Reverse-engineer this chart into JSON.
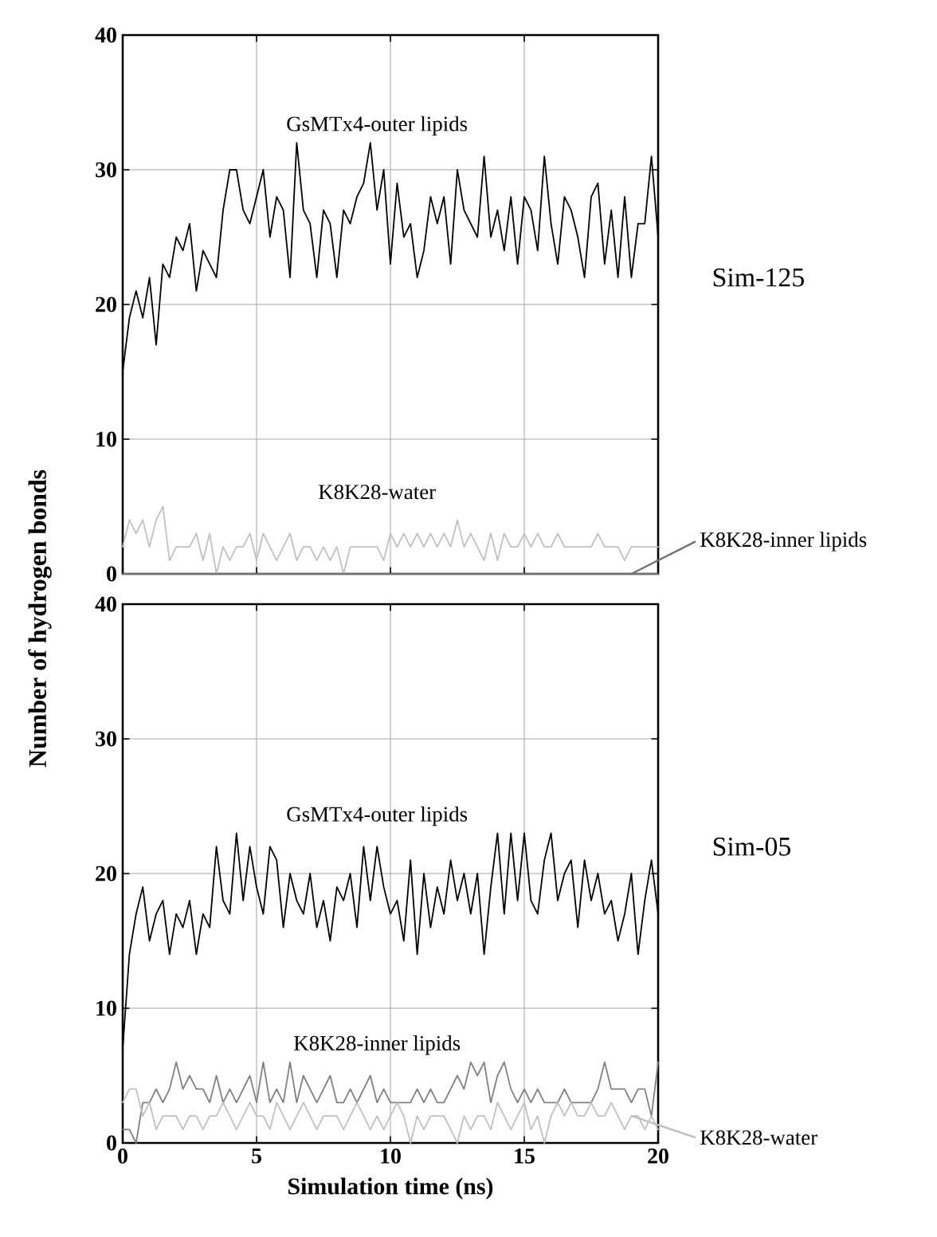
{
  "chart_data": [
    {
      "type": "line",
      "ylabel": "Number of hydrogen bonds",
      "annotations": [
        "Sim-125"
      ],
      "xlim": [
        0,
        20
      ],
      "xticks": [
        0,
        5,
        10,
        15,
        20
      ],
      "ylim": [
        0,
        40
      ],
      "yticks": [
        0,
        10,
        20,
        30,
        40
      ],
      "grid": true,
      "tick_labels": "y",
      "x": [
        0,
        0.25,
        0.5,
        0.75,
        1,
        1.25,
        1.5,
        1.75,
        2,
        2.25,
        2.5,
        2.75,
        3,
        3.25,
        3.5,
        3.75,
        4,
        4.25,
        4.5,
        4.75,
        5,
        5.25,
        5.5,
        5.75,
        6,
        6.25,
        6.5,
        6.75,
        7,
        7.25,
        7.5,
        7.75,
        8,
        8.25,
        8.5,
        8.75,
        9,
        9.25,
        9.5,
        9.75,
        10,
        10.25,
        10.5,
        10.75,
        11,
        11.25,
        11.5,
        11.75,
        12,
        12.25,
        12.5,
        12.75,
        13,
        13.25,
        13.5,
        13.75,
        14,
        14.25,
        14.5,
        14.75,
        15,
        15.25,
        15.5,
        15.75,
        16,
        16.25,
        16.5,
        16.75,
        17,
        17.25,
        17.5,
        17.75,
        18,
        18.25,
        18.5,
        18.75,
        19,
        19.25,
        19.5,
        19.75,
        20
      ],
      "series": [
        {
          "name": "GsMTx4-outer lipids",
          "color": "#000000",
          "values": [
            15,
            19,
            21,
            19,
            22,
            17,
            23,
            22,
            25,
            24,
            26,
            21,
            24,
            23,
            22,
            27,
            30,
            30,
            27,
            26,
            28,
            30,
            25,
            28,
            27,
            22,
            32,
            27,
            26,
            22,
            27,
            26,
            22,
            27,
            26,
            28,
            29,
            32,
            27,
            30,
            23,
            29,
            25,
            26,
            22,
            24,
            28,
            26,
            28,
            23,
            30,
            27,
            26,
            25,
            31,
            25,
            27,
            24,
            28,
            23,
            28,
            27,
            24,
            31,
            26,
            23,
            28,
            27,
            25,
            22,
            28,
            29,
            23,
            27,
            22,
            28,
            22,
            26,
            26,
            31,
            25
          ]
        },
        {
          "name": "K8K28-water",
          "color": "#c0c0c0",
          "values": [
            2,
            4,
            3,
            4,
            2,
            4,
            5,
            1,
            2,
            2,
            2,
            3,
            1,
            3,
            0,
            2,
            1,
            2,
            2,
            3,
            1,
            3,
            2,
            1,
            2,
            3,
            1,
            2,
            2,
            1,
            2,
            1,
            2,
            0,
            2,
            2,
            2,
            2,
            2,
            1,
            3,
            2,
            3,
            2,
            3,
            2,
            3,
            2,
            3,
            2,
            4,
            2,
            3,
            2,
            1,
            3,
            1,
            3,
            2,
            2,
            3,
            2,
            3,
            2,
            2,
            3,
            2,
            2,
            2,
            2,
            2,
            3,
            2,
            2,
            2,
            1,
            2,
            2,
            2,
            2,
            2
          ]
        },
        {
          "name": "K8K28-inner lipids",
          "color": "#707070",
          "values": [
            0,
            0,
            0,
            0,
            0,
            0,
            0,
            0,
            0,
            0,
            0,
            0,
            0,
            0,
            0,
            0,
            0,
            0,
            0,
            0,
            0,
            0,
            0,
            0,
            0,
            0,
            0,
            0,
            0,
            0,
            0,
            0,
            0,
            0,
            0,
            0,
            0,
            0,
            0,
            0,
            0,
            0,
            0,
            0,
            0,
            0,
            0,
            0,
            0,
            0,
            0,
            0,
            0,
            0,
            0,
            0,
            0,
            0,
            0,
            0,
            0,
            0,
            0,
            0,
            0,
            0,
            0,
            0,
            0,
            0,
            0,
            0,
            0,
            0,
            0,
            0,
            0,
            0,
            0,
            0,
            0
          ]
        }
      ]
    },
    {
      "type": "line",
      "xlabel": "Simulation time   (ns)",
      "annotations": [
        "Sim-05"
      ],
      "xlim": [
        0,
        20
      ],
      "xticks": [
        0,
        5,
        10,
        15,
        20
      ],
      "ylim": [
        0,
        40
      ],
      "yticks": [
        0,
        10,
        20,
        30,
        40
      ],
      "grid": true,
      "x": [
        0,
        0.25,
        0.5,
        0.75,
        1,
        1.25,
        1.5,
        1.75,
        2,
        2.25,
        2.5,
        2.75,
        3,
        3.25,
        3.5,
        3.75,
        4,
        4.25,
        4.5,
        4.75,
        5,
        5.25,
        5.5,
        5.75,
        6,
        6.25,
        6.5,
        6.75,
        7,
        7.25,
        7.5,
        7.75,
        8,
        8.25,
        8.5,
        8.75,
        9,
        9.25,
        9.5,
        9.75,
        10,
        10.25,
        10.5,
        10.75,
        11,
        11.25,
        11.5,
        11.75,
        12,
        12.25,
        12.5,
        12.75,
        13,
        13.25,
        13.5,
        13.75,
        14,
        14.25,
        14.5,
        14.75,
        15,
        15.25,
        15.5,
        15.75,
        16,
        16.25,
        16.5,
        16.75,
        17,
        17.25,
        17.5,
        17.75,
        18,
        18.25,
        18.5,
        18.75,
        19,
        19.25,
        19.5,
        19.75,
        20
      ],
      "series": [
        {
          "name": "GsMTx4-outer lipids",
          "color": "#000000",
          "values": [
            7,
            14,
            17,
            19,
            15,
            17,
            18,
            14,
            17,
            16,
            18,
            14,
            17,
            16,
            22,
            18,
            17,
            23,
            18,
            22,
            19,
            17,
            22,
            21,
            16,
            20,
            18,
            17,
            20,
            16,
            18,
            15,
            19,
            18,
            20,
            16,
            22,
            18,
            22,
            19,
            17,
            18,
            15,
            21,
            14,
            20,
            16,
            19,
            17,
            21,
            18,
            20,
            17,
            20,
            14,
            19,
            23,
            17,
            23,
            18,
            23,
            18,
            17,
            21,
            23,
            18,
            20,
            21,
            16,
            21,
            18,
            20,
            17,
            18,
            15,
            17,
            20,
            14,
            18,
            21,
            17
          ]
        },
        {
          "name": "K8K28-inner lipids",
          "color": "#808080",
          "values": [
            1,
            1,
            0,
            3,
            3,
            4,
            3,
            4,
            6,
            4,
            5,
            4,
            4,
            3,
            5,
            3,
            4,
            3,
            4,
            5,
            3,
            6,
            3,
            4,
            3,
            6,
            3,
            5,
            4,
            3,
            4,
            5,
            3,
            3,
            4,
            3,
            4,
            5,
            3,
            4,
            3,
            3,
            3,
            3,
            4,
            3,
            4,
            3,
            3,
            4,
            5,
            4,
            6,
            5,
            6,
            3,
            5,
            6,
            4,
            3,
            4,
            3,
            4,
            3,
            3,
            3,
            4,
            3,
            3,
            3,
            3,
            4,
            6,
            4,
            4,
            4,
            3,
            4,
            4,
            2,
            6
          ]
        },
        {
          "name": "K8K28-water",
          "color": "#c0c0c0",
          "values": [
            3,
            4,
            4,
            2,
            3,
            1,
            2,
            2,
            2,
            1,
            2,
            2,
            1,
            2,
            2,
            3,
            2,
            1,
            2,
            3,
            2,
            2,
            1,
            3,
            2,
            1,
            2,
            3,
            2,
            1,
            2,
            2,
            2,
            1,
            2,
            3,
            2,
            1,
            2,
            1,
            2,
            3,
            2,
            0,
            2,
            1,
            2,
            2,
            2,
            1,
            0,
            2,
            1,
            2,
            2,
            1,
            3,
            2,
            1,
            2,
            3,
            1,
            2,
            0,
            2,
            3,
            2,
            3,
            2,
            2,
            3,
            2,
            2,
            3,
            2,
            1,
            2,
            2,
            1,
            2,
            1
          ]
        }
      ]
    }
  ]
}
